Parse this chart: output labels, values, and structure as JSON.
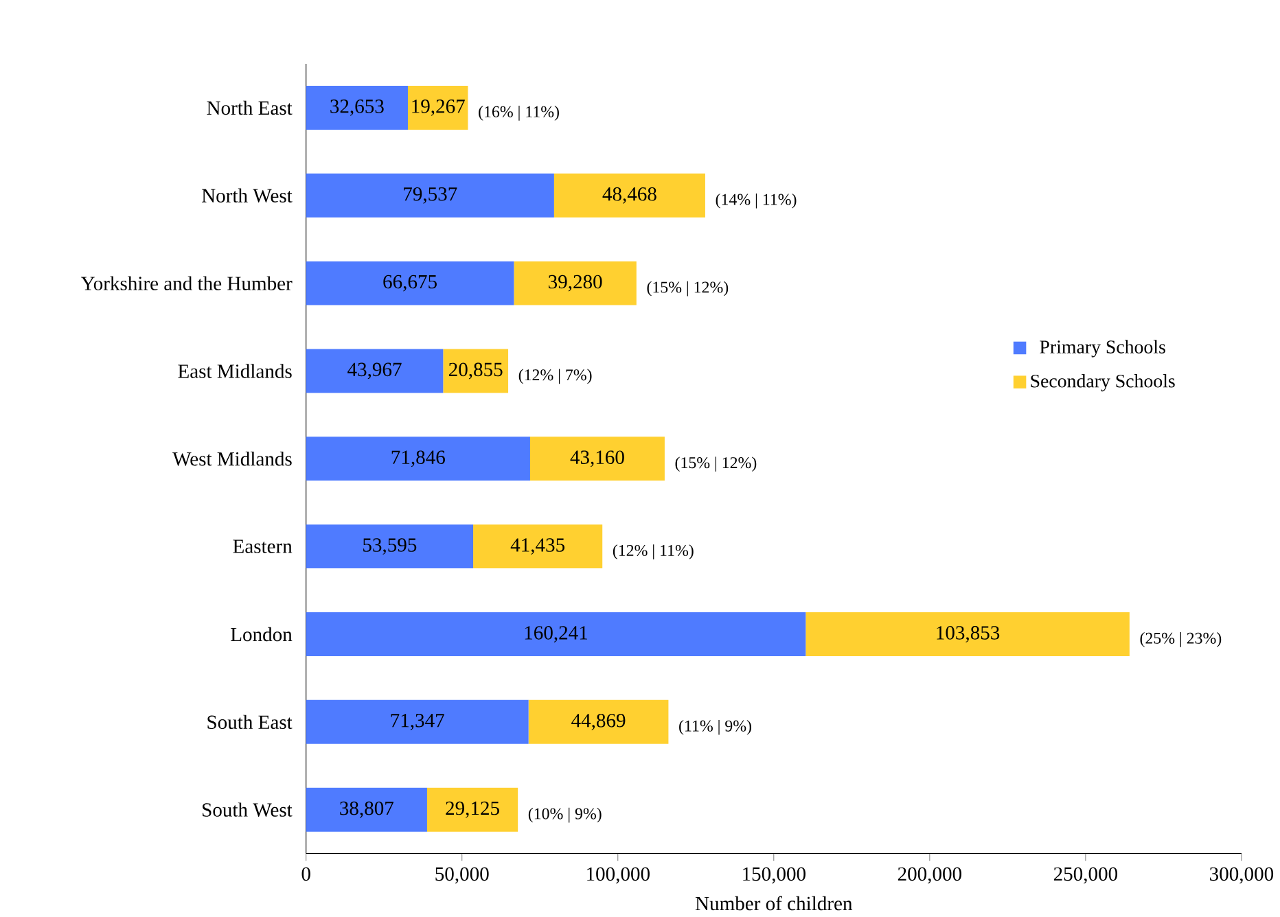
{
  "chart_data": {
    "type": "bar",
    "orientation": "horizontal",
    "stacked": true,
    "xlabel": "Number of children",
    "categories": [
      "North East",
      "North West",
      "Yorkshire and the Humber",
      "East Midlands",
      "West Midlands",
      "Eastern",
      "London",
      "South East",
      "South West"
    ],
    "series": [
      {
        "name": "Primary Schools",
        "color": "#4f7bff",
        "values": [
          32653,
          79537,
          66675,
          43967,
          71846,
          53595,
          160241,
          71347,
          38807
        ],
        "value_labels": [
          "32,653",
          "79,537",
          "66,675",
          "43,967",
          "71,846",
          "53,595",
          "160,241",
          "71,347",
          "38,807"
        ]
      },
      {
        "name": "Secondary Schools",
        "color": "#ffd030",
        "values": [
          19267,
          48468,
          39280,
          20855,
          43160,
          41435,
          103853,
          44869,
          29125
        ],
        "value_labels": [
          "19,267",
          "48,468",
          "39,280",
          "20,855",
          "43,160",
          "41,435",
          "103,853",
          "44,869",
          "29,125"
        ]
      }
    ],
    "xlim": [
      0,
      300000
    ],
    "xticks": [
      0,
      {
        "value": 50000,
        "label": "50,000"
      },
      {
        "value": 100000,
        "label": "100,000"
      },
      {
        "value": 150000,
        "label": "150,000"
      },
      {
        "value": 200000,
        "label": "200,000"
      },
      {
        "value": 250000,
        "label": "250,000"
      },
      {
        "value": 300000,
        "label": "300,000"
      }
    ],
    "legend": "right",
    "annotations": [
      {
        "text": "(16% | 11%)",
        "x": 51920,
        "y": "North East"
      },
      {
        "text": "(14% | 11%)",
        "x": 128005,
        "y": "North West"
      },
      {
        "text": "(15% | 12%)",
        "x": 105955,
        "y": "Yorkshire and the Humber"
      },
      {
        "text": "(12% | 7%)",
        "x": 64822,
        "y": "East Midlands"
      },
      {
        "text": "(15% | 12%)",
        "x": 115006,
        "y": "West Midlands"
      },
      {
        "text": "(12% | 11%)",
        "x": 95030,
        "y": "Eastern"
      },
      {
        "text": "(25% | 23%)",
        "x": 264094,
        "y": "London"
      },
      {
        "text": "(11% | 9%)",
        "x": 116216,
        "y": "South East"
      },
      {
        "text": "(10% | 9%)",
        "x": 67932,
        "y": "South West"
      }
    ]
  }
}
